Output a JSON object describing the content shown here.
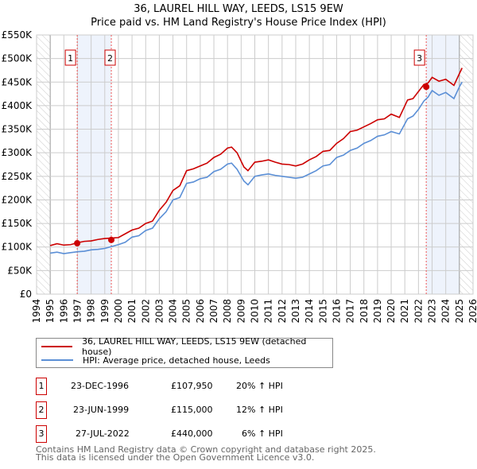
{
  "chart_data": {
    "type": "line",
    "title": "36, LAUREL HILL WAY, LEEDS, LS15 9EW",
    "subtitle": "Price paid vs. HM Land Registry's House Price Index (HPI)",
    "xlim": [
      1994,
      2026
    ],
    "ylim": [
      0,
      550000
    ],
    "x_ticks": [
      "1994",
      "1995",
      "1996",
      "1997",
      "1998",
      "1999",
      "2000",
      "2001",
      "2002",
      "2003",
      "2004",
      "2005",
      "2006",
      "2007",
      "2008",
      "2009",
      "2010",
      "2011",
      "2012",
      "2013",
      "2014",
      "2015",
      "2016",
      "2017",
      "2018",
      "2019",
      "2020",
      "2021",
      "2022",
      "2023",
      "2024",
      "2025",
      "2026"
    ],
    "y_ticks": [
      "£0",
      "£50K",
      "£100K",
      "£150K",
      "£200K",
      "£250K",
      "£300K",
      "£350K",
      "£400K",
      "£450K",
      "£500K",
      "£550K"
    ],
    "grid": true,
    "series": [
      {
        "name": "36, LAUREL HILL WAY, LEEDS, LS15 9EW (detached house)",
        "color": "#cc0000",
        "x": [
          1995,
          1995.5,
          1996,
          1996.5,
          1997,
          1997.5,
          1998,
          1998.5,
          1999,
          1999.5,
          2000,
          2000.5,
          2001,
          2001.5,
          2002,
          2002.5,
          2003,
          2003.5,
          2004,
          2004.5,
          2005,
          2005.5,
          2006,
          2006.5,
          2007,
          2007.5,
          2008,
          2008.3,
          2008.7,
          2009.2,
          2009.5,
          2010,
          2010.5,
          2011,
          2011.5,
          2012,
          2012.5,
          2013,
          2013.5,
          2014,
          2014.5,
          2015,
          2015.5,
          2016,
          2016.5,
          2017,
          2017.5,
          2018,
          2018.5,
          2019,
          2019.5,
          2020,
          2020.6,
          2021.2,
          2021.6,
          2022,
          2022.4,
          2022.7,
          2023,
          2023.5,
          2024,
          2024.6,
          2025,
          2025.2
        ],
        "y": [
          103000,
          107000,
          104000,
          105000,
          109000,
          112000,
          113000,
          116000,
          118000,
          119000,
          120000,
          128000,
          136000,
          140000,
          150000,
          155000,
          178000,
          195000,
          220000,
          230000,
          262000,
          266000,
          272000,
          278000,
          290000,
          297000,
          310000,
          312000,
          300000,
          270000,
          262000,
          280000,
          282000,
          285000,
          280000,
          276000,
          275000,
          272000,
          276000,
          285000,
          292000,
          303000,
          305000,
          320000,
          330000,
          345000,
          348000,
          355000,
          362000,
          370000,
          372000,
          382000,
          375000,
          412000,
          415000,
          430000,
          445000,
          448000,
          460000,
          452000,
          456000,
          443000,
          468000,
          480000
        ]
      },
      {
        "name": "HPI: Average price, detached house, Leeds",
        "color": "#5b8fd6",
        "x": [
          1995,
          1995.5,
          1996,
          1996.5,
          1997,
          1997.5,
          1998,
          1998.5,
          1999,
          1999.5,
          2000,
          2000.5,
          2001,
          2001.5,
          2002,
          2002.5,
          2003,
          2003.5,
          2004,
          2004.5,
          2005,
          2005.5,
          2006,
          2006.5,
          2007,
          2007.5,
          2008,
          2008.3,
          2008.7,
          2009.2,
          2009.5,
          2010,
          2010.5,
          2011,
          2011.5,
          2012,
          2012.5,
          2013,
          2013.5,
          2014,
          2014.5,
          2015,
          2015.5,
          2016,
          2016.5,
          2017,
          2017.5,
          2018,
          2018.5,
          2019,
          2019.5,
          2020,
          2020.6,
          2021.2,
          2021.6,
          2022,
          2022.4,
          2022.7,
          2023,
          2023.5,
          2024,
          2024.6,
          2025,
          2025.2
        ],
        "y": [
          87000,
          89000,
          86000,
          88000,
          90000,
          91000,
          94000,
          95000,
          97000,
          101000,
          105000,
          110000,
          121000,
          124000,
          135000,
          140000,
          160000,
          175000,
          200000,
          205000,
          235000,
          238000,
          245000,
          248000,
          260000,
          265000,
          276000,
          278000,
          265000,
          240000,
          232000,
          250000,
          253000,
          255000,
          252000,
          250000,
          248000,
          246000,
          248000,
          255000,
          262000,
          272000,
          275000,
          290000,
          295000,
          305000,
          310000,
          320000,
          326000,
          335000,
          338000,
          345000,
          340000,
          372000,
          378000,
          392000,
          410000,
          418000,
          432000,
          422000,
          428000,
          415000,
          440000,
          450000
        ]
      }
    ],
    "sales": [
      {
        "label": "1",
        "x": 1996.98,
        "y": 107950
      },
      {
        "label": "2",
        "x": 1999.48,
        "y": 115000
      },
      {
        "label": "3",
        "x": 2022.57,
        "y": 440000
      }
    ],
    "shaded": [
      [
        1996.98,
        1999.48
      ],
      [
        2022.57,
        2025.0
      ]
    ],
    "hatched": [
      [
        1994,
        1995
      ],
      [
        2025,
        2026
      ]
    ]
  },
  "legend": {
    "items": [
      "36, LAUREL HILL WAY, LEEDS, LS15 9EW (detached house)",
      "HPI: Average price, detached house, Leeds"
    ]
  },
  "table": [
    {
      "n": "1",
      "date": "23-DEC-1996",
      "price": "£107,950",
      "hpi": "20% ↑ HPI"
    },
    {
      "n": "2",
      "date": "23-JUN-1999",
      "price": "£115,000",
      "hpi": "12% ↑ HPI"
    },
    {
      "n": "3",
      "date": "27-JUL-2022",
      "price": "£440,000",
      "hpi": "6% ↑ HPI"
    }
  ],
  "footer": {
    "line1": "Contains HM Land Registry data © Crown copyright and database right 2025.",
    "line2": "This data is licensed under the Open Government Licence v3.0."
  }
}
